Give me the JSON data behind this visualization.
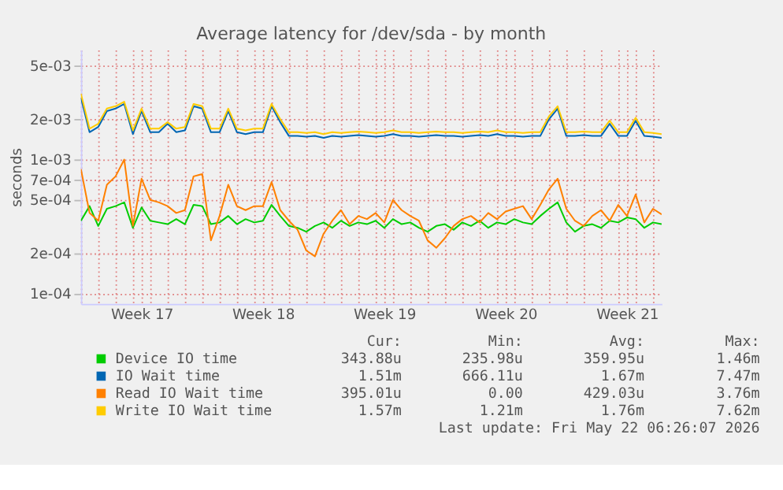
{
  "chart_data": {
    "type": "line",
    "title": "Average latency for /dev/sda - by month",
    "ylabel": "seconds",
    "categories": [
      null,
      null,
      null,
      null,
      null,
      null,
      null,
      "Week 17",
      null,
      null,
      null,
      null,
      null,
      null,
      null,
      null,
      null,
      null,
      null,
      null,
      null,
      "Week 18",
      null,
      null,
      null,
      null,
      null,
      null,
      null,
      null,
      null,
      null,
      null,
      null,
      null,
      "Week 19",
      null,
      null,
      null,
      null,
      null,
      null,
      null,
      null,
      null,
      null,
      null,
      null,
      null,
      "Week 20",
      null,
      null,
      null,
      null,
      null,
      null,
      null,
      null,
      null,
      null,
      null,
      null,
      null,
      "Week 21",
      null,
      null,
      null,
      null
    ],
    "series": [
      {
        "name": "Device IO time",
        "color": "#00cc00",
        "values": [
          0.00035,
          0.00045,
          0.00032,
          0.00043,
          0.00045,
          0.00048,
          0.00031,
          0.00044,
          0.00035,
          0.00034,
          0.00033,
          0.00036,
          0.00033,
          0.00046,
          0.00045,
          0.00033,
          0.00034,
          0.00038,
          0.00033,
          0.00036,
          0.00034,
          0.00035,
          0.00046,
          0.00038,
          0.00032,
          0.00031,
          0.00029,
          0.00032,
          0.00034,
          0.00031,
          0.00035,
          0.00032,
          0.00034,
          0.00033,
          0.00035,
          0.00031,
          0.00036,
          0.00033,
          0.00034,
          0.00031,
          0.00029,
          0.00032,
          0.00033,
          0.0003,
          0.00034,
          0.00032,
          0.00035,
          0.00031,
          0.00034,
          0.00033,
          0.00036,
          0.00034,
          0.00033,
          0.00038,
          0.00043,
          0.00048,
          0.00034,
          0.00029,
          0.00032,
          0.00033,
          0.00031,
          0.00035,
          0.00034,
          0.00037,
          0.00036,
          0.00031,
          0.00034,
          0.00033
        ]
      },
      {
        "name": "IO Wait time",
        "color": "#0066b3",
        "values": [
          0.0029,
          0.0016,
          0.00175,
          0.0023,
          0.0024,
          0.0026,
          0.00155,
          0.0023,
          0.0016,
          0.0016,
          0.00185,
          0.0016,
          0.00165,
          0.0025,
          0.0024,
          0.0016,
          0.0016,
          0.0023,
          0.0016,
          0.00155,
          0.0016,
          0.0016,
          0.0025,
          0.0019,
          0.0015,
          0.0015,
          0.00148,
          0.0015,
          0.00145,
          0.0015,
          0.00148,
          0.0015,
          0.00152,
          0.0015,
          0.00148,
          0.0015,
          0.00155,
          0.0015,
          0.0015,
          0.00148,
          0.0015,
          0.00152,
          0.0015,
          0.0015,
          0.00148,
          0.0015,
          0.00152,
          0.0015,
          0.00155,
          0.0015,
          0.0015,
          0.00148,
          0.0015,
          0.0015,
          0.002,
          0.0024,
          0.0015,
          0.0015,
          0.00152,
          0.0015,
          0.0015,
          0.00185,
          0.0015,
          0.0015,
          0.00195,
          0.0015,
          0.00148,
          0.00145
        ]
      },
      {
        "name": "Read IO Wait time",
        "color": "#ff8000",
        "values": [
          0.00085,
          0.0004,
          0.00035,
          0.00065,
          0.00075,
          0.001,
          0.00032,
          0.00072,
          0.0005,
          0.00048,
          0.00045,
          0.0004,
          0.00042,
          0.00075,
          0.00078,
          0.00025,
          0.00038,
          0.00065,
          0.00045,
          0.00042,
          0.00045,
          0.00045,
          0.00068,
          0.00042,
          0.00035,
          0.0003,
          0.00021,
          0.00019,
          0.00028,
          0.00035,
          0.00042,
          0.00033,
          0.00038,
          0.00036,
          0.0004,
          0.00034,
          0.0005,
          0.00042,
          0.00038,
          0.00035,
          0.00025,
          0.00022,
          0.00026,
          0.00032,
          0.00036,
          0.00038,
          0.00034,
          0.0004,
          0.00036,
          0.00041,
          0.00043,
          0.00045,
          0.00036,
          0.00046,
          0.0006,
          0.00072,
          0.00043,
          0.00035,
          0.00032,
          0.00038,
          0.00042,
          0.00035,
          0.00046,
          0.00038,
          0.00055,
          0.00034,
          0.00043,
          0.00039
        ]
      },
      {
        "name": "Write IO Wait time",
        "color": "#ffcc00",
        "values": [
          0.0031,
          0.0017,
          0.00185,
          0.0024,
          0.0025,
          0.0027,
          0.00165,
          0.0024,
          0.0017,
          0.0017,
          0.0019,
          0.0017,
          0.00175,
          0.0026,
          0.0025,
          0.0017,
          0.0017,
          0.0024,
          0.0017,
          0.00165,
          0.0017,
          0.0017,
          0.0026,
          0.002,
          0.0016,
          0.0016,
          0.00158,
          0.0016,
          0.00155,
          0.0016,
          0.00158,
          0.0016,
          0.00162,
          0.0016,
          0.00158,
          0.0016,
          0.00165,
          0.0016,
          0.0016,
          0.00158,
          0.0016,
          0.00162,
          0.0016,
          0.0016,
          0.00158,
          0.0016,
          0.00162,
          0.0016,
          0.00165,
          0.0016,
          0.0016,
          0.00158,
          0.0016,
          0.0016,
          0.0021,
          0.0025,
          0.0016,
          0.0016,
          0.00162,
          0.0016,
          0.0016,
          0.00195,
          0.0016,
          0.0016,
          0.00205,
          0.0016,
          0.00158,
          0.00155
        ]
      }
    ],
    "log": true,
    "ylim": [
      8.4e-05,
      0.0066
    ],
    "yticks": [
      {
        "value": 0.0001,
        "label": "1e-04"
      },
      {
        "value": 0.0002,
        "label": "2e-04"
      },
      {
        "value": 0.0005,
        "label": "5e-04"
      },
      {
        "value": 0.0007,
        "label": "7e-04"
      },
      {
        "value": 0.001,
        "label": "1e-03"
      },
      {
        "value": 0.002,
        "label": "2e-03"
      },
      {
        "value": 0.005,
        "label": "5e-03"
      }
    ],
    "grid": true,
    "legend": "bottom",
    "marker": "none",
    "line_style": "solid",
    "annotations": [
      "Cur:",
      "Min:",
      "Avg:",
      "Max:",
      "343.88u",
      "235.98u",
      "359.95u",
      "1.46m",
      "1.51m",
      "666.11u",
      "1.67m",
      "7.47m",
      "395.01u",
      "0.00",
      "429.03u",
      "3.76m",
      "1.57m",
      "1.21m",
      "1.76m",
      "7.62m",
      "Last update: Fri May 22 06:26:07 2026"
    ]
  }
}
